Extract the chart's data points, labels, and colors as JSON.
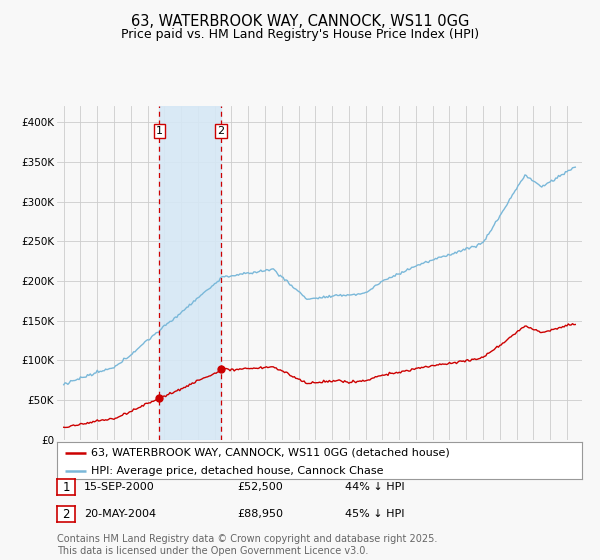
{
  "title": "63, WATERBROOK WAY, CANNOCK, WS11 0GG",
  "subtitle": "Price paid vs. HM Land Registry's House Price Index (HPI)",
  "ylim": [
    0,
    420000
  ],
  "yticks": [
    0,
    50000,
    100000,
    150000,
    200000,
    250000,
    300000,
    350000,
    400000
  ],
  "ytick_labels": [
    "£0",
    "£50K",
    "£100K",
    "£150K",
    "£200K",
    "£250K",
    "£300K",
    "£350K",
    "£400K"
  ],
  "xlim_left": 1994.6,
  "xlim_right": 2025.9,
  "background_color": "#f8f8f8",
  "plot_bg_color": "#f8f8f8",
  "grid_color": "#cccccc",
  "hpi_color": "#7ab8d9",
  "price_color": "#cc0000",
  "sale1_date_num": 2000.71,
  "sale1_price": 52500,
  "sale1_label": "1",
  "sale1_date_str": "15-SEP-2000",
  "sale1_pct": "44% ↓ HPI",
  "sale2_date_num": 2004.38,
  "sale2_price": 88950,
  "sale2_label": "2",
  "sale2_date_str": "20-MAY-2004",
  "sale2_pct": "45% ↓ HPI",
  "shade_color": "#d6e8f5",
  "vline_color": "#cc0000",
  "legend_line1": "63, WATERBROOK WAY, CANNOCK, WS11 0GG (detached house)",
  "legend_line2": "HPI: Average price, detached house, Cannock Chase",
  "footer": "Contains HM Land Registry data © Crown copyright and database right 2025.\nThis data is licensed under the Open Government Licence v3.0.",
  "title_fontsize": 10.5,
  "subtitle_fontsize": 9,
  "tick_fontsize": 7.5,
  "label_fontsize": 8,
  "legend_fontsize": 8,
  "footer_fontsize": 7
}
